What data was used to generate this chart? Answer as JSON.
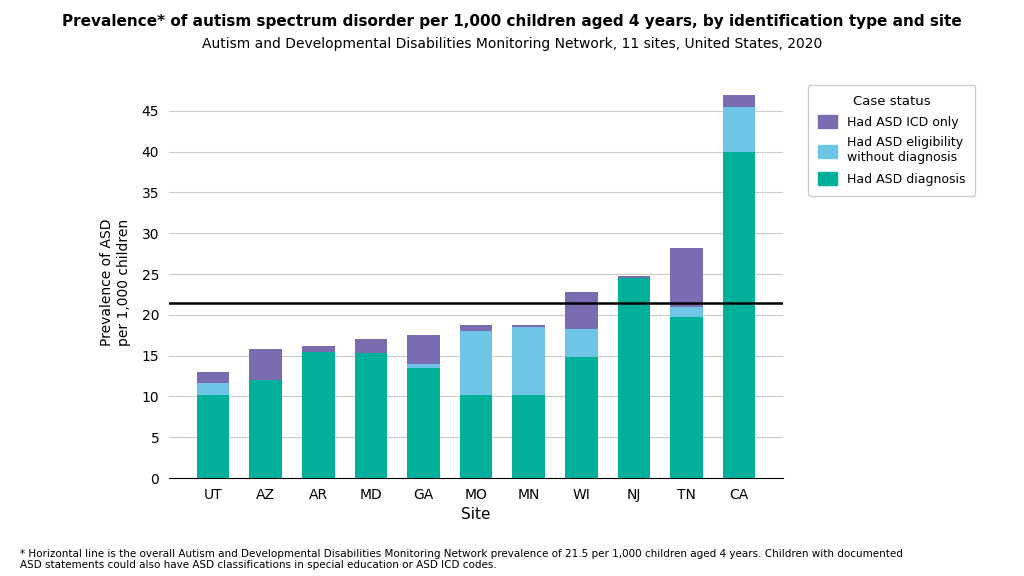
{
  "sites": [
    "UT",
    "AZ",
    "AR",
    "MD",
    "GA",
    "MO",
    "MN",
    "WI",
    "NJ",
    "TN",
    "CA"
  ],
  "diagnosis": [
    10.2,
    12.0,
    15.5,
    15.3,
    13.5,
    10.2,
    10.2,
    14.8,
    24.5,
    19.8,
    40.0
  ],
  "eligibility": [
    1.5,
    0.0,
    0.0,
    0.0,
    0.5,
    7.8,
    8.3,
    3.5,
    0.0,
    1.2,
    5.5
  ],
  "icd_only": [
    1.3,
    3.8,
    0.7,
    1.7,
    3.5,
    0.8,
    0.3,
    4.5,
    0.3,
    7.2,
    1.5
  ],
  "hline": 21.5,
  "color_diagnosis": "#00B09B",
  "color_eligibility": "#6EC6E6",
  "color_icd": "#7B6BB0",
  "title": "Prevalence* of autism spectrum disorder per 1,000 children aged 4 years, by identification type and site",
  "subtitle": "Autism and Developmental Disabilities Monitoring Network, 11 sites, United States, 2020",
  "xlabel": "Site",
  "ylabel": "Prevalence of ASD\nper 1,000 children",
  "legend_title": "Case status",
  "legend_labels": [
    "Had ASD ICD only",
    "Had ASD eligibility\nwithout diagnosis",
    "Had ASD diagnosis"
  ],
  "footnote": "* Horizontal line is the overall Autism and Developmental Disabilities Monitoring Network prevalence of 21.5 per 1,000 children aged 4 years. Children with documented\nASD statements could also have ASD classifications in special education or ASD ICD codes.",
  "ylim": [
    0,
    48
  ],
  "yticks": [
    0,
    5,
    10,
    15,
    20,
    25,
    30,
    35,
    40,
    45
  ]
}
